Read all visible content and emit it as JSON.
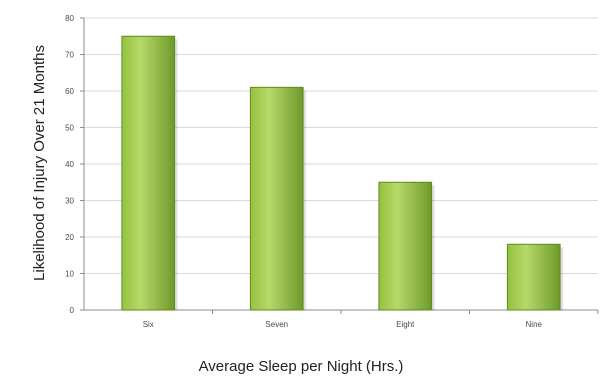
{
  "chart_data": {
    "type": "bar",
    "title": "",
    "xlabel": "Average Sleep per Night (Hrs.)",
    "ylabel": "Likelihood of Injury Over 21 Months",
    "categories": [
      "Six",
      "Seven",
      "Eight",
      "Nine"
    ],
    "values": [
      75,
      61,
      35,
      18
    ],
    "ylim": [
      0,
      80
    ],
    "yticks": [
      0,
      10,
      20,
      30,
      40,
      50,
      60,
      70,
      80
    ],
    "grid": true,
    "legend": "none",
    "colors": {
      "bar_light": "#b6d96a",
      "bar_mid": "#94c23f",
      "bar_dark": "#6e9a2a",
      "bar_edge": "#5f8a22",
      "grid": "#d9d9d9",
      "axis": "#8c8c8c"
    }
  }
}
